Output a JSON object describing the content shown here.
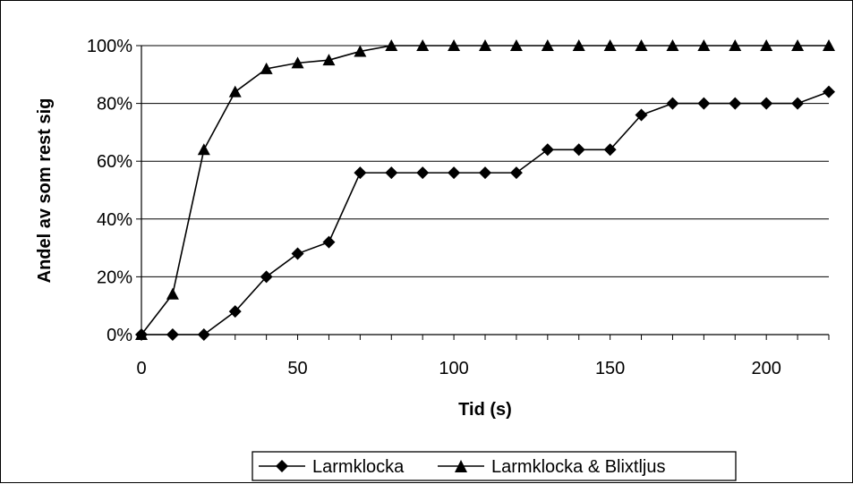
{
  "chart_data": {
    "type": "line",
    "title": "",
    "xlabel": "Tid (s)",
    "ylabel": "Andel av som rest sig",
    "xlim": [
      0,
      220
    ],
    "ylim": [
      0,
      100
    ],
    "x_ticks": [
      0,
      50,
      100,
      150,
      200
    ],
    "x_tick_labels": [
      "0",
      "50",
      "100",
      "150",
      "200"
    ],
    "y_ticks": [
      0,
      20,
      40,
      60,
      80,
      100
    ],
    "y_tick_labels": [
      "0%",
      "20%",
      "40%",
      "60%",
      "80%",
      "100%"
    ],
    "grid": "horizontal",
    "legend_position": "bottom",
    "x": [
      0,
      10,
      20,
      30,
      40,
      50,
      60,
      70,
      80,
      90,
      100,
      110,
      120,
      130,
      140,
      150,
      160,
      170,
      180,
      190,
      200,
      210,
      220
    ],
    "series": [
      {
        "name": "Larmklocka",
        "marker": "diamond",
        "values": [
          0,
          0,
          0,
          8,
          20,
          28,
          32,
          56,
          56,
          56,
          56,
          56,
          56,
          64,
          64,
          64,
          76,
          80,
          80,
          80,
          80,
          80,
          84
        ]
      },
      {
        "name": "Larmklocka & Blixtljus",
        "marker": "triangle",
        "values": [
          0,
          14,
          64,
          84,
          92,
          94,
          95,
          98,
          100,
          100,
          100,
          100,
          100,
          100,
          100,
          100,
          100,
          100,
          100,
          100,
          100,
          100,
          100
        ]
      }
    ],
    "colors": {
      "line": "#000000",
      "grid": "#000000",
      "background": "#ffffff"
    }
  }
}
